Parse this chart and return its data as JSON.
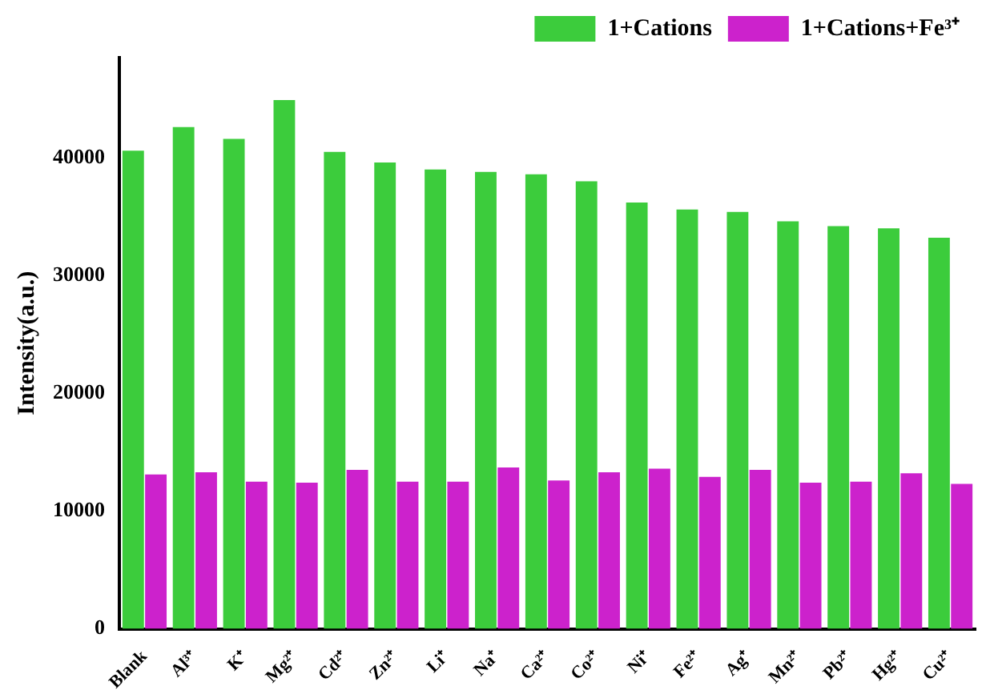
{
  "chart_data": {
    "type": "bar",
    "ylabel": "Intensity(a.u.)",
    "categories": [
      "Blank",
      "Al³⁺",
      "K⁺",
      "Mg²⁺",
      "Cd²⁺",
      "Zn²⁺",
      "Li⁺",
      "Na⁺",
      "Ca²⁺",
      "Co²⁺",
      "Ni⁺",
      "Fe²⁺",
      "Ag⁺",
      "Mn²⁺",
      "Pb²⁺",
      "Hg²⁺",
      "Cu²⁺"
    ],
    "series": [
      {
        "name": "1+Cations",
        "color": "#3ccc3c",
        "values": [
          40600,
          42600,
          41600,
          44900,
          40500,
          39600,
          39000,
          38800,
          38600,
          38000,
          36200,
          35600,
          35400,
          34600,
          34200,
          34000,
          33200
        ]
      },
      {
        "name": "1+Cations+Fe³⁺",
        "color": "#cc22cc",
        "values": [
          13100,
          13300,
          12500,
          12400,
          13500,
          12500,
          12500,
          13700,
          12600,
          13300,
          13600,
          12900,
          13500,
          12400,
          12500,
          13200,
          12300
        ]
      }
    ],
    "ylim": [
      0,
      48500
    ],
    "yticks": [
      0,
      10000,
      20000,
      30000,
      40000
    ],
    "grid": false,
    "legend": "top right"
  }
}
